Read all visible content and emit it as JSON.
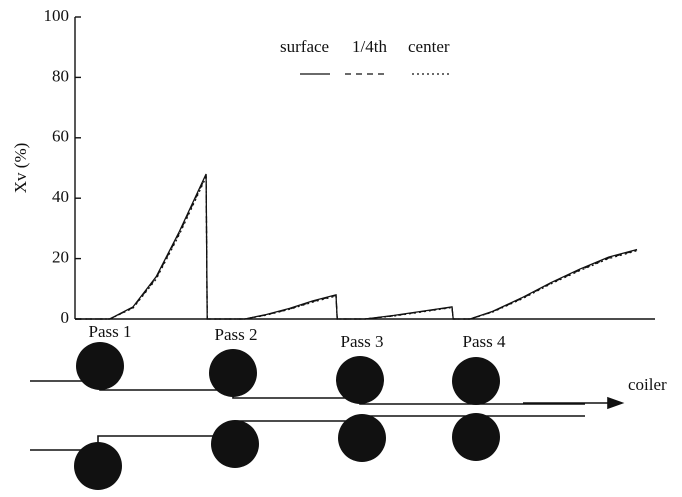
{
  "chart_data": {
    "type": "line",
    "ylabel": "Xv (%)",
    "x": [
      0,
      6,
      10,
      14,
      18,
      22.6,
      22.8,
      29.3,
      33,
      37,
      41,
      45.0,
      45.2,
      50,
      55,
      60,
      65.0,
      65.2,
      68.1,
      72,
      77,
      82,
      87,
      92,
      96.9
    ],
    "xlim": [
      0,
      100
    ],
    "series": [
      {
        "name": "surface",
        "color": "#111111",
        "linestyle": "solid",
        "values": [
          0,
          0,
          4,
          14,
          29,
          48,
          0,
          0,
          1.5,
          3.5,
          6,
          8,
          0,
          0,
          1.2,
          2.6,
          4,
          0,
          0,
          2.5,
          7,
          12,
          16.5,
          20.5,
          23
        ]
      },
      {
        "name": "1/4th",
        "color": "#111111",
        "linestyle": "dashed",
        "values": [
          0,
          0,
          3.8,
          13.6,
          28.5,
          47.5,
          0,
          0,
          1.4,
          3.3,
          5.8,
          7.8,
          0,
          0,
          1.1,
          2.5,
          3.9,
          0,
          0,
          2.4,
          6.8,
          11.8,
          16.2,
          20.2,
          22.8
        ]
      },
      {
        "name": "center",
        "color": "#111111",
        "linestyle": "dotted",
        "values": [
          0,
          0,
          3.6,
          13.2,
          28,
          47,
          0,
          0,
          1.3,
          3.2,
          5.6,
          7.6,
          0,
          0,
          1.0,
          2.4,
          3.8,
          0,
          0,
          2.3,
          6.6,
          11.6,
          16,
          20,
          22.6
        ]
      }
    ],
    "ylim": [
      0,
      100
    ],
    "yticks": [
      0,
      20,
      40,
      60,
      80,
      100
    ],
    "grid": false
  },
  "diagram": {
    "pass_labels": [
      "Pass 1",
      "Pass 2",
      "Pass 3",
      "Pass 4"
    ],
    "coiler": "coiler"
  }
}
